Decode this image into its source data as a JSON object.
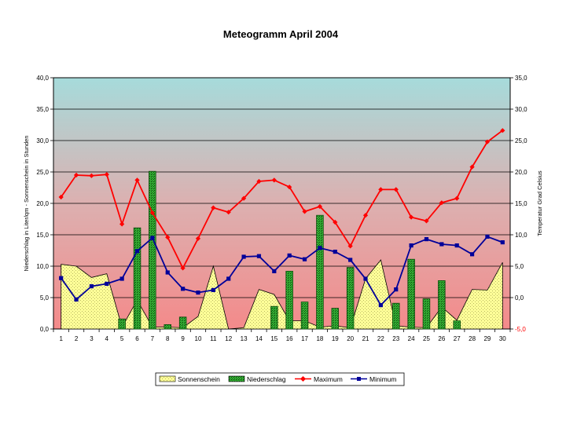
{
  "chart_data": {
    "type": "bar",
    "title": "Meteogramm April 2004",
    "ylabel_left": "Niederschlag in Liter/qm - Sonnenschein in Stunden",
    "ylabel_right": "Temperatur Grad Celsius",
    "ylim_left": [
      0,
      40
    ],
    "ylim_right": [
      -5,
      35
    ],
    "yticks_left": [
      "0,0",
      "5,0",
      "10,0",
      "15,0",
      "20,0",
      "25,0",
      "30,0",
      "35,0",
      "40,0"
    ],
    "yticks_right": [
      "-5,0",
      "0,0",
      "5,0",
      "10,0",
      "15,0",
      "20,0",
      "25,0",
      "30,0",
      "35,0"
    ],
    "categories": [
      "1",
      "2",
      "3",
      "4",
      "5",
      "6",
      "7",
      "8",
      "9",
      "10",
      "11",
      "12",
      "13",
      "14",
      "15",
      "16",
      "17",
      "18",
      "19",
      "20",
      "21",
      "22",
      "23",
      "24",
      "25",
      "26",
      "27",
      "28",
      "29",
      "30"
    ],
    "legend_position": "bottom",
    "grid": true,
    "series": [
      {
        "name": "Sonnenschein",
        "kind": "area",
        "axis": "left",
        "color": "#ffff99",
        "values": [
          10.3,
          10.0,
          8.2,
          8.8,
          0.3,
          4.6,
          0.3,
          0.3,
          0.2,
          2.0,
          10.0,
          0.0,
          0.2,
          6.3,
          5.5,
          1.3,
          1.3,
          0.3,
          0.5,
          0.2,
          8.0,
          11.0,
          0.5,
          0.3,
          0.2,
          3.5,
          1.4,
          6.3,
          6.2,
          10.6
        ]
      },
      {
        "name": "Niederschlag",
        "kind": "bar",
        "axis": "left",
        "color": "#33aa33",
        "values": [
          0,
          0,
          0,
          0,
          1.6,
          16.1,
          25.1,
          0.7,
          1.9,
          0,
          0,
          0,
          0,
          0,
          3.6,
          9.2,
          4.3,
          18.1,
          3.3,
          9.8,
          0,
          0,
          4.1,
          11.1,
          4.8,
          7.7,
          1.3,
          0,
          0,
          0
        ]
      },
      {
        "name": "Maximum",
        "kind": "line",
        "axis": "right",
        "color": "#ff0000",
        "values": [
          16.0,
          19.5,
          19.4,
          19.6,
          11.7,
          18.7,
          13.5,
          9.6,
          4.7,
          9.4,
          14.3,
          13.6,
          15.8,
          18.5,
          18.7,
          17.6,
          13.7,
          14.5,
          12.0,
          8.2,
          13.1,
          17.2,
          17.2,
          12.8,
          12.2,
          15.1,
          15.8,
          20.8,
          24.8,
          26.6
        ]
      },
      {
        "name": "Minimum",
        "kind": "line",
        "axis": "right",
        "color": "#000099",
        "values": [
          3.1,
          -0.3,
          1.8,
          2.2,
          3.0,
          7.4,
          9.5,
          4.0,
          1.4,
          0.8,
          1.2,
          3.0,
          6.5,
          6.6,
          4.2,
          6.7,
          6.1,
          7.9,
          7.3,
          6.0,
          3.0,
          -1.2,
          1.3,
          8.3,
          9.3,
          8.5,
          8.3,
          6.9,
          9.7,
          8.8
        ]
      }
    ]
  }
}
